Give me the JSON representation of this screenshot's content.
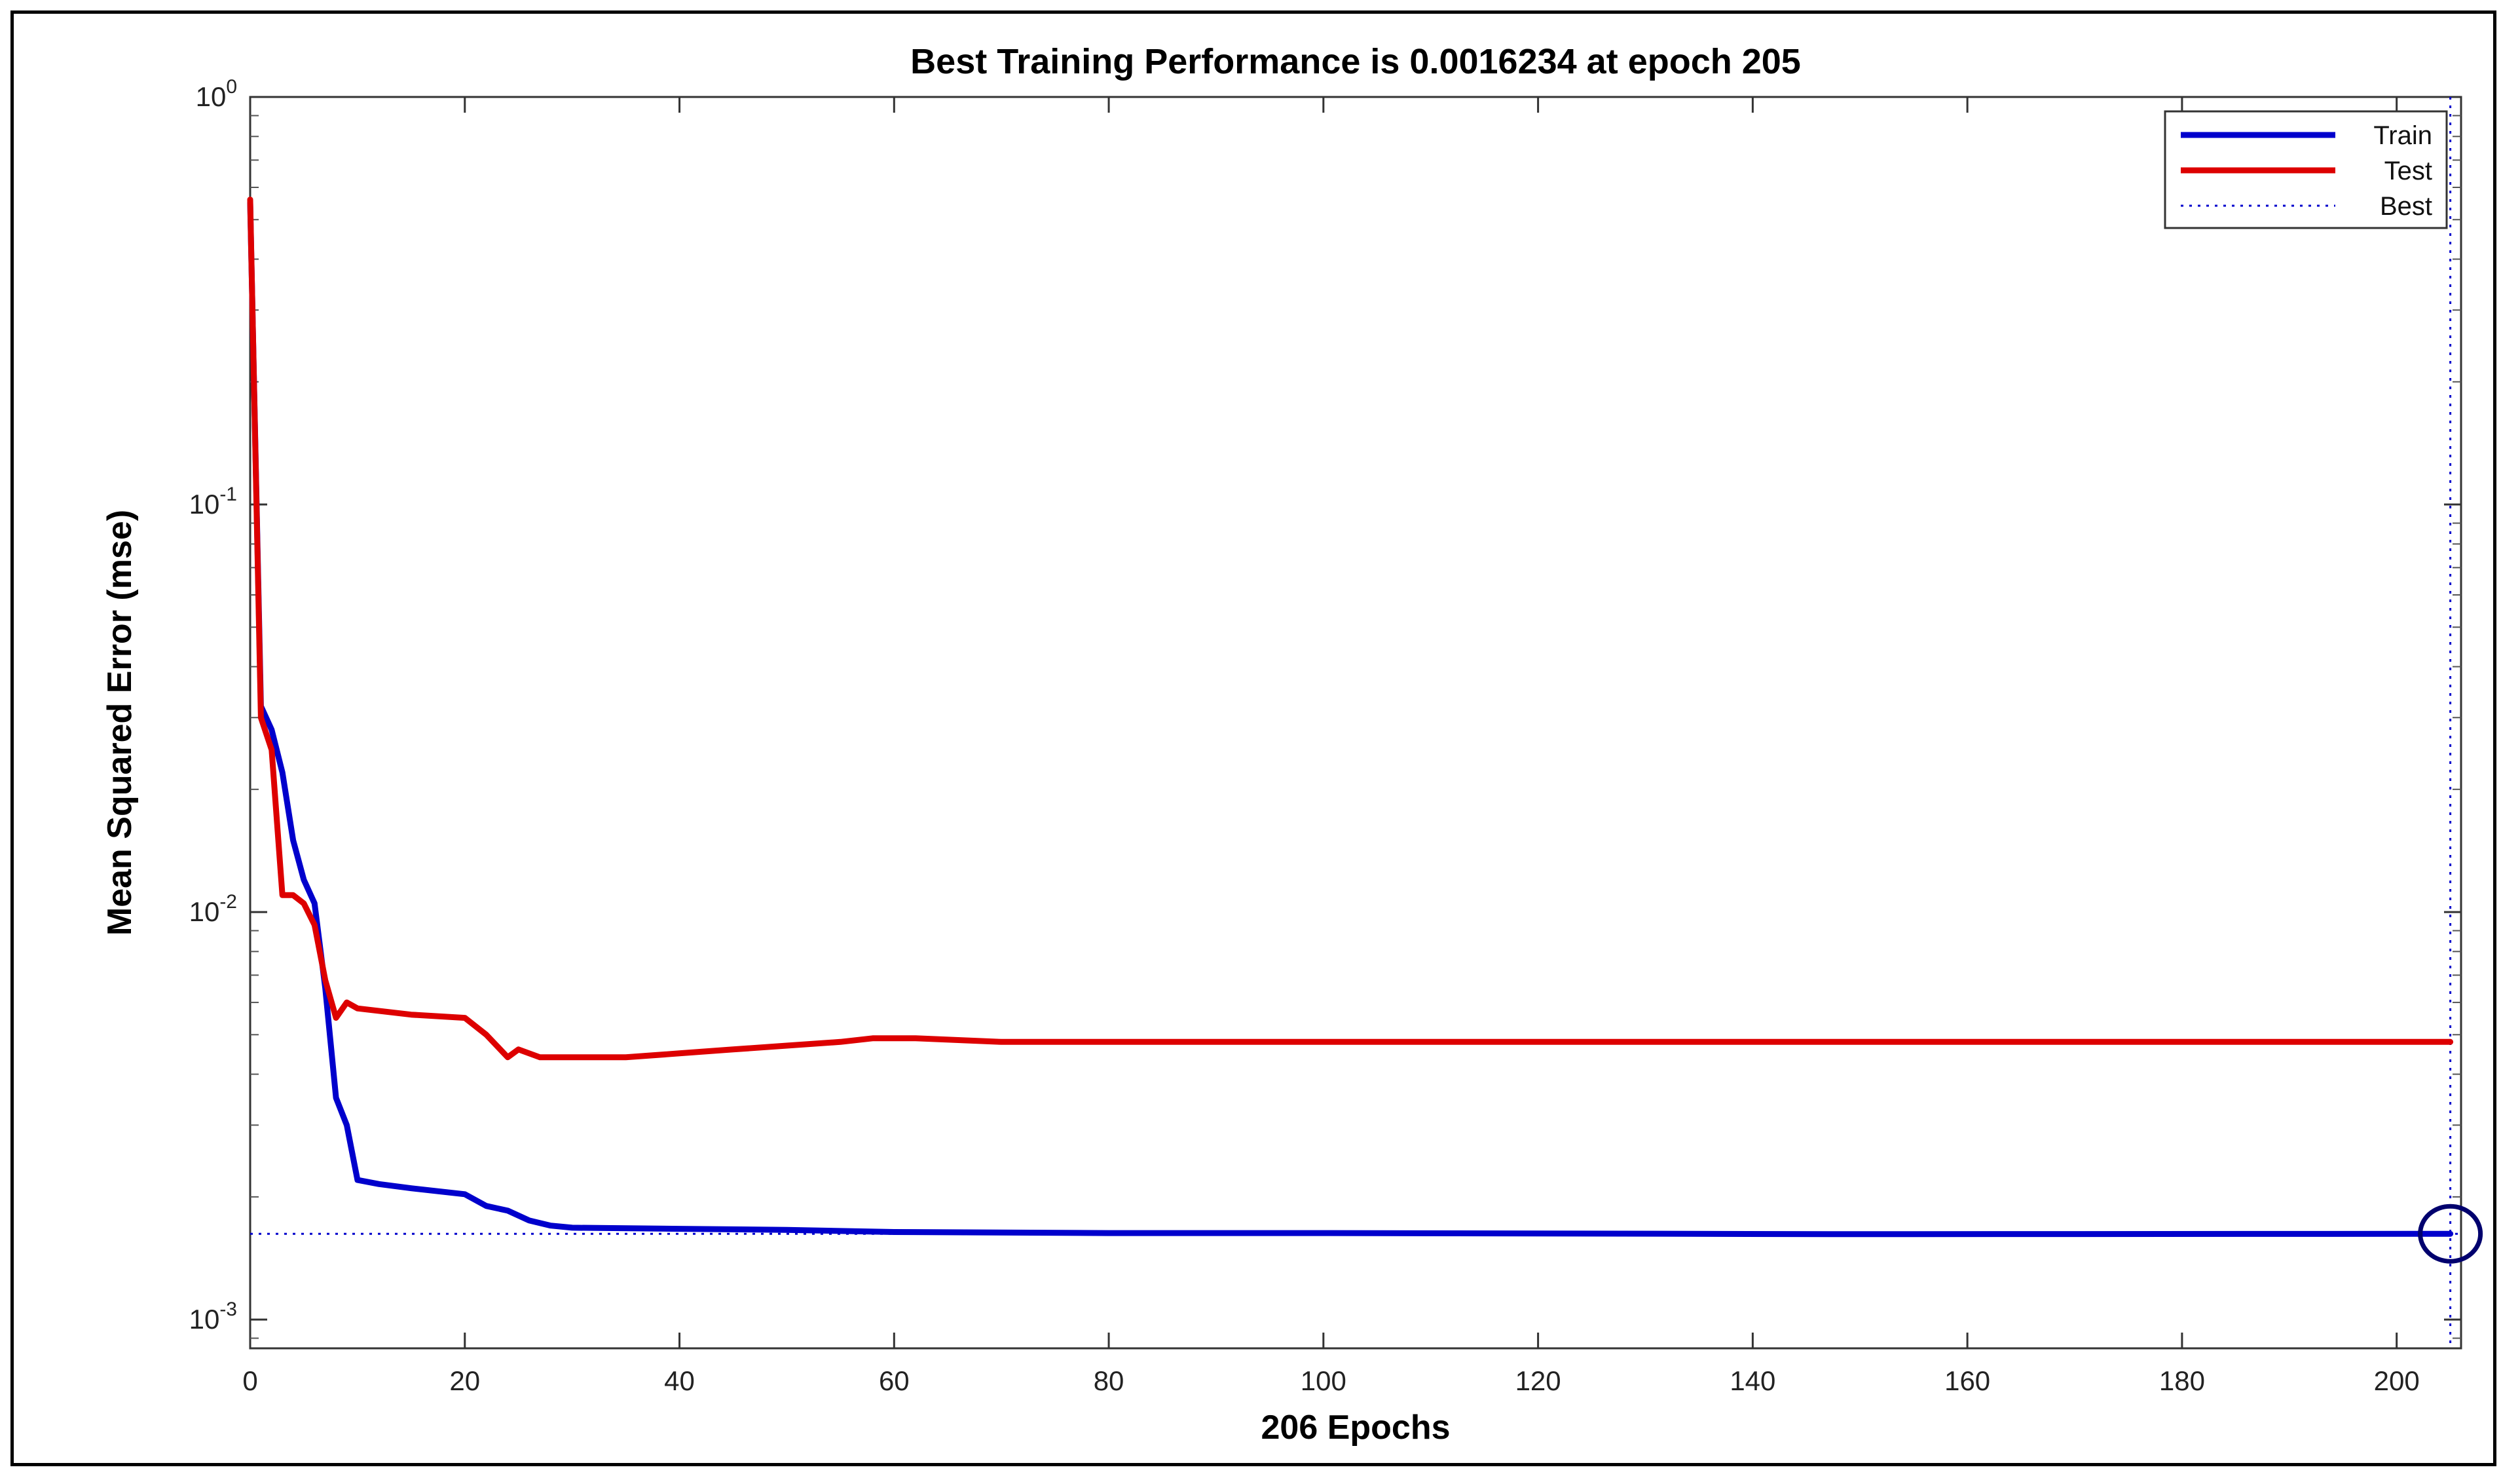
{
  "chart_data": {
    "type": "line",
    "title": "Best Training Performance is 0.0016234 at epoch 205",
    "xlabel": "206 Epochs",
    "ylabel": "Mean Squared Error  (mse)",
    "xlim": [
      0,
      206
    ],
    "ylim": [
      0.00085,
      1.0
    ],
    "yscale": "log",
    "grid": false,
    "legend_position": "top-right",
    "x_ticks": [
      "0",
      "20",
      "40",
      "60",
      "80",
      "100",
      "120",
      "140",
      "160",
      "180",
      "200"
    ],
    "y_ticks": [
      {
        "base": "10",
        "exp": "0"
      },
      {
        "base": "10",
        "exp": "-1"
      },
      {
        "base": "10",
        "exp": "-2"
      },
      {
        "base": "10",
        "exp": "-3"
      }
    ],
    "series": [
      {
        "name": "Train",
        "color": "#0000cc",
        "style": "solid",
        "points": [
          [
            0,
            0.55
          ],
          [
            1,
            0.032
          ],
          [
            2,
            0.028
          ],
          [
            3,
            0.022
          ],
          [
            4,
            0.015
          ],
          [
            5,
            0.012
          ],
          [
            6,
            0.0105
          ],
          [
            7,
            0.0065
          ],
          [
            8,
            0.0035
          ],
          [
            9,
            0.003
          ],
          [
            10,
            0.0022
          ],
          [
            12,
            0.00215
          ],
          [
            15,
            0.0021
          ],
          [
            20,
            0.00203
          ],
          [
            22,
            0.0019
          ],
          [
            24,
            0.00185
          ],
          [
            26,
            0.00175
          ],
          [
            28,
            0.0017
          ],
          [
            30,
            0.00168
          ],
          [
            40,
            0.00167
          ],
          [
            50,
            0.00166
          ],
          [
            60,
            0.00164
          ],
          [
            80,
            0.00163
          ],
          [
            100,
            0.00163
          ],
          [
            150,
            0.00162
          ],
          [
            205,
            0.0016234
          ]
        ]
      },
      {
        "name": "Test",
        "color": "#dd0000",
        "style": "solid",
        "points": [
          [
            0,
            0.56
          ],
          [
            1,
            0.03
          ],
          [
            2,
            0.025
          ],
          [
            3,
            0.011
          ],
          [
            4,
            0.011
          ],
          [
            5,
            0.0105
          ],
          [
            6,
            0.0093
          ],
          [
            7,
            0.0068
          ],
          [
            8,
            0.0055
          ],
          [
            9,
            0.006
          ],
          [
            10,
            0.0058
          ],
          [
            15,
            0.0056
          ],
          [
            20,
            0.0055
          ],
          [
            22,
            0.005
          ],
          [
            24,
            0.0044
          ],
          [
            25,
            0.0046
          ],
          [
            27,
            0.0044
          ],
          [
            30,
            0.0044
          ],
          [
            35,
            0.0044
          ],
          [
            40,
            0.0045
          ],
          [
            45,
            0.0046
          ],
          [
            50,
            0.0047
          ],
          [
            55,
            0.0048
          ],
          [
            58,
            0.0049
          ],
          [
            62,
            0.0049
          ],
          [
            70,
            0.0048
          ],
          [
            80,
            0.0048
          ],
          [
            90,
            0.0048
          ],
          [
            100,
            0.0048
          ],
          [
            150,
            0.0048
          ],
          [
            205,
            0.0048
          ]
        ]
      }
    ],
    "best": {
      "name": "Best",
      "epoch": 205,
      "value": 0.0016234,
      "color": "#0000cc",
      "style": "dotted"
    }
  }
}
